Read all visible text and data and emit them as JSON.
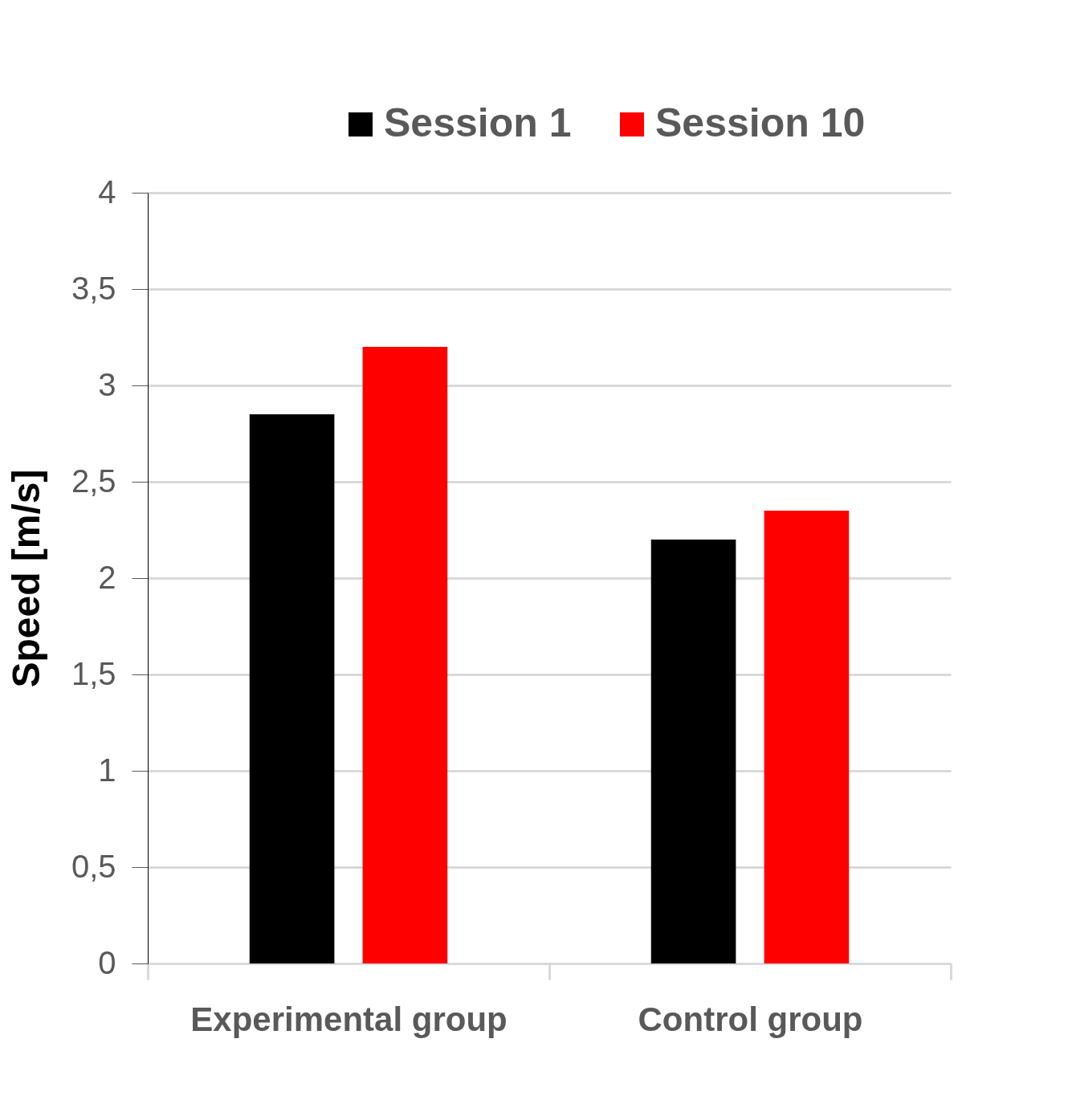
{
  "chart_data": {
    "type": "bar",
    "ylabel": "Speed [m/s]",
    "categories": [
      "Experimental group",
      "Control group"
    ],
    "series": [
      {
        "name": "Session 1",
        "color": "#000000",
        "values": [
          2.85,
          2.2
        ]
      },
      {
        "name": "Session 10",
        "color": "#ff0000",
        "values": [
          3.2,
          2.35
        ]
      }
    ],
    "ylim": [
      0,
      4
    ],
    "yticks": [
      0,
      {
        "value": 0.5,
        "label": "0,5"
      },
      1,
      {
        "value": 1.5,
        "label": "1,5"
      },
      2,
      {
        "value": 2.5,
        "label": "2,5"
      },
      3,
      {
        "value": 3.5,
        "label": "3,5"
      },
      4
    ],
    "grid": "y",
    "legend": "top right"
  }
}
